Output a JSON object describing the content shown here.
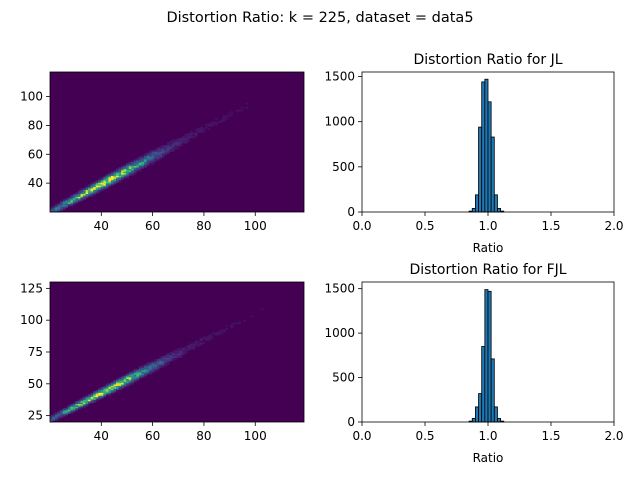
{
  "figure": {
    "title": "Distortion Ratio: k = 225, dataset = data5"
  },
  "colors": {
    "heatmap_background": "#440154",
    "bar_fill": "#1f77b4",
    "bar_edge": "#000000",
    "colormap": "viridis"
  },
  "chart_data": [
    {
      "type": "heatmap",
      "title": "",
      "xlabel": "",
      "ylabel": "",
      "xlim": [
        20,
        119
      ],
      "ylim": [
        20,
        117
      ],
      "x_ticks": [
        "40",
        "60",
        "80",
        "100"
      ],
      "y_ticks": [
        "40",
        "60",
        "80",
        "100"
      ],
      "trend": {
        "x": [
          20,
          119
        ],
        "y": [
          20,
          115
        ]
      },
      "peak": {
        "x": 41,
        "y": 41
      },
      "colormap": "viridis"
    },
    {
      "type": "bar",
      "title": "Distortion Ratio for JL",
      "xlabel": "Ratio",
      "ylabel": "",
      "xlim": [
        0.0,
        2.0
      ],
      "ylim": [
        0,
        1550
      ],
      "x_ticks": [
        "0.0",
        "0.5",
        "1.0",
        "1.5",
        "2.0"
      ],
      "y_ticks": [
        "0",
        "500",
        "1000",
        "1500"
      ],
      "bin_edges": [
        0.85,
        0.875,
        0.9,
        0.925,
        0.95,
        0.975,
        1.0,
        1.025,
        1.05,
        1.075,
        1.1,
        1.125
      ],
      "values": [
        10,
        40,
        190,
        940,
        1440,
        1470,
        1220,
        830,
        190,
        40,
        10
      ]
    },
    {
      "type": "heatmap",
      "title": "",
      "xlabel": "",
      "ylabel": "",
      "xlim": [
        20,
        119
      ],
      "ylim": [
        20,
        130
      ],
      "x_ticks": [
        "40",
        "60",
        "80",
        "100"
      ],
      "y_ticks": [
        "25",
        "50",
        "75",
        "100",
        "125"
      ],
      "trend": {
        "x": [
          20,
          119
        ],
        "y": [
          22,
          125
        ]
      },
      "peak": {
        "x": 42,
        "y": 44
      },
      "colormap": "viridis"
    },
    {
      "type": "bar",
      "title": "Distortion Ratio for FJL",
      "xlabel": "Ratio",
      "ylabel": "",
      "xlim": [
        0.0,
        2.0
      ],
      "ylim": [
        0,
        1575
      ],
      "x_ticks": [
        "0.0",
        "0.5",
        "1.0",
        "1.5",
        "2.0"
      ],
      "y_ticks": [
        "0",
        "500",
        "1000",
        "1500"
      ],
      "bin_edges": [
        0.85,
        0.875,
        0.9,
        0.925,
        0.95,
        0.975,
        1.0,
        1.025,
        1.05,
        1.075,
        1.1,
        1.125
      ],
      "values": [
        10,
        40,
        170,
        320,
        850,
        1490,
        1470,
        710,
        170,
        40,
        10
      ]
    }
  ]
}
